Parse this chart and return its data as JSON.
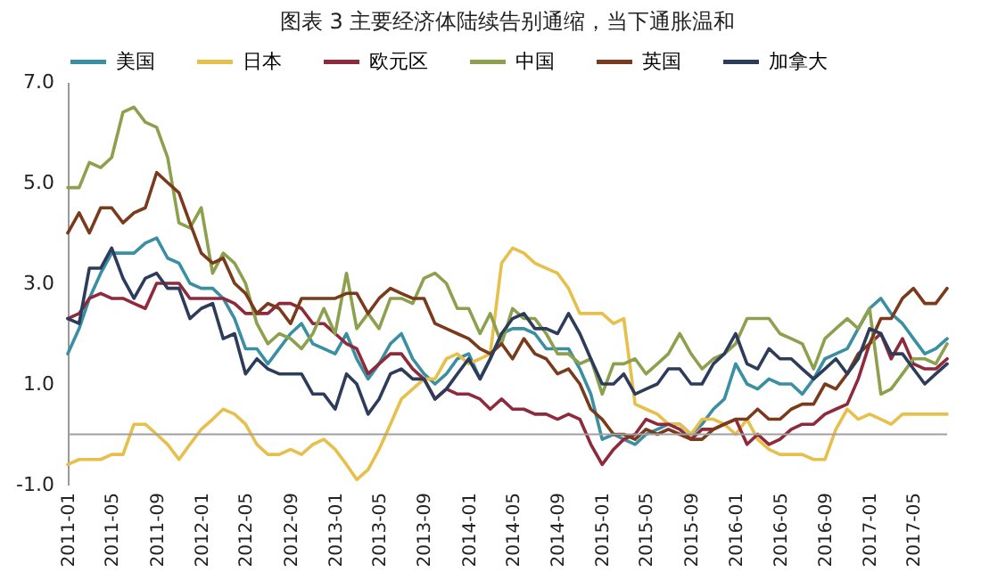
{
  "chart_data": {
    "type": "line",
    "title": "图表 3  主要经济体陆续告别通缩，当下通胀温和",
    "x": [
      "2011-01",
      "2011-02",
      "2011-03",
      "2011-04",
      "2011-05",
      "2011-06",
      "2011-07",
      "2011-08",
      "2011-09",
      "2011-10",
      "2011-11",
      "2011-12",
      "2012-01",
      "2012-02",
      "2012-03",
      "2012-04",
      "2012-05",
      "2012-06",
      "2012-07",
      "2012-08",
      "2012-09",
      "2012-10",
      "2012-11",
      "2012-12",
      "2013-01",
      "2013-02",
      "2013-03",
      "2013-04",
      "2013-05",
      "2013-06",
      "2013-07",
      "2013-08",
      "2013-09",
      "2013-10",
      "2013-11",
      "2013-12",
      "2014-01",
      "2014-02",
      "2014-03",
      "2014-04",
      "2014-05",
      "2014-06",
      "2014-07",
      "2014-08",
      "2014-09",
      "2014-10",
      "2014-11",
      "2014-12",
      "2015-01",
      "2015-02",
      "2015-03",
      "2015-04",
      "2015-05",
      "2015-06",
      "2015-07",
      "2015-08",
      "2015-09",
      "2015-10",
      "2015-11",
      "2015-12",
      "2016-01",
      "2016-02",
      "2016-03",
      "2016-04",
      "2016-05",
      "2016-06",
      "2016-07",
      "2016-08",
      "2016-09",
      "2016-10",
      "2016-11",
      "2016-12",
      "2017-01",
      "2017-02",
      "2017-03",
      "2017-04",
      "2017-05",
      "2017-06",
      "2017-07",
      "2017-08"
    ],
    "series": [
      {
        "name": "美国",
        "color": "#3b8fa3",
        "values": [
          1.6,
          2.1,
          2.7,
          3.2,
          3.6,
          3.6,
          3.6,
          3.8,
          3.9,
          3.5,
          3.4,
          3.0,
          2.9,
          2.9,
          2.7,
          2.3,
          1.7,
          1.7,
          1.4,
          1.7,
          2.0,
          2.2,
          1.8,
          1.7,
          1.6,
          2.0,
          1.5,
          1.1,
          1.4,
          1.8,
          2.0,
          1.5,
          1.2,
          1.0,
          1.2,
          1.5,
          1.6,
          1.1,
          1.5,
          2.0,
          2.1,
          2.1,
          2.0,
          1.7,
          1.7,
          1.7,
          1.3,
          0.8,
          -0.1,
          0.0,
          -0.1,
          -0.2,
          0.0,
          0.1,
          0.2,
          0.2,
          0.0,
          0.2,
          0.5,
          0.7,
          1.4,
          1.0,
          0.9,
          1.1,
          1.0,
          1.0,
          0.8,
          1.1,
          1.5,
          1.6,
          1.7,
          2.1,
          2.5,
          2.7,
          2.4,
          2.2,
          1.9,
          1.6,
          1.7,
          1.9
        ]
      },
      {
        "name": "日本",
        "color": "#e6c04a",
        "values": [
          -0.6,
          -0.5,
          -0.5,
          -0.5,
          -0.4,
          -0.4,
          0.2,
          0.2,
          0.0,
          -0.2,
          -0.5,
          -0.2,
          0.1,
          0.3,
          0.5,
          0.4,
          0.2,
          -0.2,
          -0.4,
          -0.4,
          -0.3,
          -0.4,
          -0.2,
          -0.1,
          -0.3,
          -0.6,
          -0.9,
          -0.7,
          -0.3,
          0.2,
          0.7,
          0.9,
          1.1,
          1.1,
          1.5,
          1.6,
          1.4,
          1.5,
          1.6,
          3.4,
          3.7,
          3.6,
          3.4,
          3.3,
          3.2,
          2.9,
          2.4,
          2.4,
          2.4,
          2.2,
          2.3,
          0.6,
          0.5,
          0.4,
          0.2,
          0.2,
          0.0,
          0.3,
          0.3,
          0.2,
          0.0,
          0.3,
          -0.1,
          -0.3,
          -0.4,
          -0.4,
          -0.4,
          -0.5,
          -0.5,
          0.1,
          0.5,
          0.3,
          0.4,
          0.3,
          0.2,
          0.4,
          0.4,
          0.4,
          0.4,
          0.4
        ]
      },
      {
        "name": "欧元区",
        "color": "#8e2a3c",
        "values": [
          2.3,
          2.4,
          2.7,
          2.8,
          2.7,
          2.7,
          2.6,
          2.5,
          3.0,
          3.0,
          3.0,
          2.7,
          2.7,
          2.7,
          2.7,
          2.6,
          2.4,
          2.4,
          2.4,
          2.6,
          2.6,
          2.5,
          2.2,
          2.2,
          2.0,
          1.8,
          1.7,
          1.2,
          1.4,
          1.6,
          1.6,
          1.3,
          1.1,
          0.7,
          0.9,
          0.8,
          0.8,
          0.7,
          0.5,
          0.7,
          0.5,
          0.5,
          0.4,
          0.4,
          0.3,
          0.4,
          0.3,
          -0.2,
          -0.6,
          -0.3,
          -0.1,
          0.0,
          0.3,
          0.2,
          0.2,
          0.1,
          -0.1,
          0.1,
          0.1,
          0.2,
          0.3,
          -0.2,
          0.0,
          -0.2,
          -0.1,
          0.1,
          0.2,
          0.2,
          0.4,
          0.5,
          0.6,
          1.1,
          1.8,
          2.0,
          1.5,
          1.9,
          1.4,
          1.3,
          1.3,
          1.5
        ]
      },
      {
        "name": "中国",
        "color": "#8da04e",
        "values": [
          4.9,
          4.9,
          5.4,
          5.3,
          5.5,
          6.4,
          6.5,
          6.2,
          6.1,
          5.5,
          4.2,
          4.1,
          4.5,
          3.2,
          3.6,
          3.4,
          3.0,
          2.2,
          1.8,
          2.0,
          1.9,
          1.7,
          2.0,
          2.5,
          2.0,
          3.2,
          2.1,
          2.4,
          2.1,
          2.7,
          2.7,
          2.6,
          3.1,
          3.2,
          3.0,
          2.5,
          2.5,
          2.0,
          2.4,
          1.8,
          2.5,
          2.3,
          2.3,
          2.0,
          1.6,
          1.6,
          1.4,
          1.5,
          0.8,
          1.4,
          1.4,
          1.5,
          1.2,
          1.4,
          1.6,
          2.0,
          1.6,
          1.3,
          1.5,
          1.6,
          1.8,
          2.3,
          2.3,
          2.3,
          2.0,
          1.9,
          1.8,
          1.3,
          1.9,
          2.1,
          2.3,
          2.1,
          2.5,
          0.8,
          0.9,
          1.2,
          1.5,
          1.5,
          1.4,
          1.8
        ]
      },
      {
        "name": "英国",
        "color": "#7a3b1c",
        "values": [
          4.0,
          4.4,
          4.0,
          4.5,
          4.5,
          4.2,
          4.4,
          4.5,
          5.2,
          5.0,
          4.8,
          4.2,
          3.6,
          3.4,
          3.5,
          3.0,
          2.8,
          2.4,
          2.6,
          2.5,
          2.2,
          2.7,
          2.7,
          2.7,
          2.7,
          2.8,
          2.8,
          2.4,
          2.7,
          2.9,
          2.8,
          2.7,
          2.7,
          2.2,
          2.1,
          2.0,
          1.9,
          1.7,
          1.6,
          1.8,
          1.5,
          1.9,
          1.6,
          1.5,
          1.2,
          1.3,
          1.0,
          0.5,
          0.3,
          0.0,
          0.0,
          -0.1,
          0.1,
          0.0,
          0.1,
          0.0,
          -0.1,
          -0.1,
          0.1,
          0.2,
          0.3,
          0.3,
          0.5,
          0.3,
          0.3,
          0.5,
          0.6,
          0.6,
          1.0,
          0.9,
          1.2,
          1.6,
          1.8,
          2.3,
          2.3,
          2.7,
          2.9,
          2.6,
          2.6,
          2.9
        ]
      },
      {
        "name": "加拿大",
        "color": "#2e3c5c",
        "values": [
          2.3,
          2.2,
          3.3,
          3.3,
          3.7,
          3.1,
          2.7,
          3.1,
          3.2,
          2.9,
          2.9,
          2.3,
          2.5,
          2.6,
          1.9,
          2.0,
          1.2,
          1.5,
          1.3,
          1.2,
          1.2,
          1.2,
          0.8,
          0.8,
          0.5,
          1.2,
          1.0,
          0.4,
          0.7,
          1.2,
          1.3,
          1.1,
          1.1,
          0.7,
          0.9,
          1.2,
          1.5,
          1.1,
          1.5,
          2.0,
          2.3,
          2.4,
          2.1,
          2.1,
          2.0,
          2.4,
          2.0,
          1.5,
          1.0,
          1.0,
          1.2,
          0.8,
          0.9,
          1.0,
          1.3,
          1.3,
          1.0,
          1.0,
          1.4,
          1.6,
          2.0,
          1.4,
          1.3,
          1.7,
          1.5,
          1.5,
          1.3,
          1.1,
          1.3,
          1.5,
          1.2,
          1.5,
          2.1,
          2.0,
          1.6,
          1.6,
          1.3,
          1.0,
          1.2,
          1.4
        ]
      }
    ],
    "xlim": [
      "2011-01",
      "2017-08"
    ],
    "xticks": [
      "2011-01",
      "2011-05",
      "2011-09",
      "2012-01",
      "2012-05",
      "2012-09",
      "2013-01",
      "2013-05",
      "2013-09",
      "2014-01",
      "2014-05",
      "2014-09",
      "2015-01",
      "2015-05",
      "2015-09",
      "2016-01",
      "2016-05",
      "2016-09",
      "2017-01",
      "2017-05"
    ],
    "ylim": [
      -1,
      7
    ],
    "yticks": [
      {
        "value": -1,
        "label": "-1.0"
      },
      {
        "value": 1,
        "label": "1.0"
      },
      {
        "value": 3,
        "label": "3.0"
      },
      {
        "value": 5,
        "label": "5.0"
      },
      {
        "value": 7,
        "label": "7.0"
      }
    ],
    "ref_lines": [
      {
        "axis": "y",
        "value": 0,
        "color": "#a0a0a0"
      }
    ],
    "grid": false,
    "legend": "top"
  }
}
